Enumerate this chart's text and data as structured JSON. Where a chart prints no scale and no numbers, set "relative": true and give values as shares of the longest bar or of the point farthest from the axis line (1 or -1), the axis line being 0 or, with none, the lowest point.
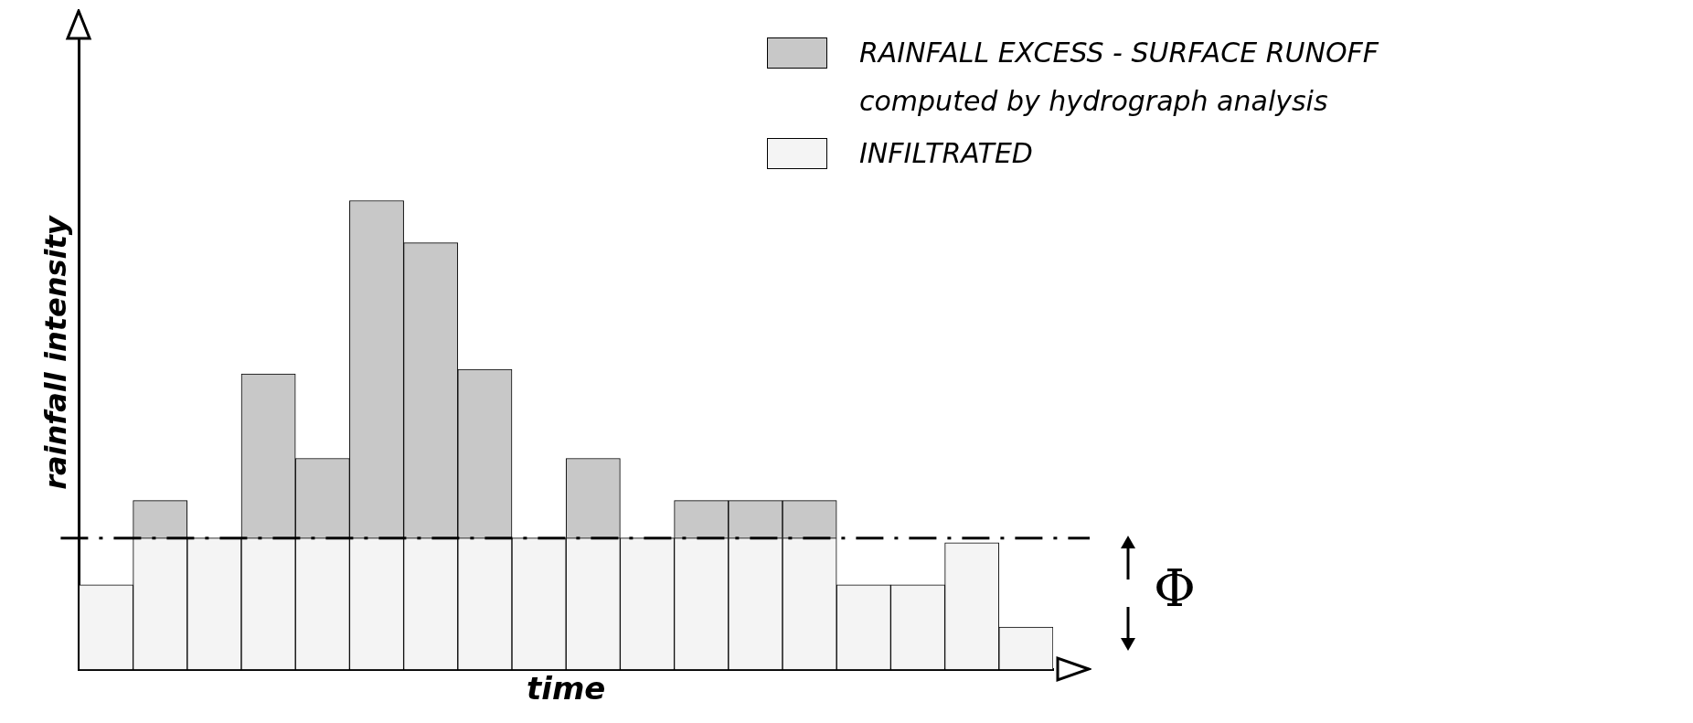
{
  "chart_data": {
    "type": "bar",
    "relative": true,
    "stacked": true,
    "xlabel": "time",
    "ylabel": "rainfall intensity",
    "legend": "top right",
    "grid": false,
    "categories": [
      null,
      null,
      null,
      null,
      null,
      null,
      null,
      null,
      null,
      null,
      null,
      null,
      null,
      null,
      null,
      null,
      null,
      null
    ],
    "series": [
      {
        "name": "INFILTRATED",
        "color": "#f4f4f4",
        "values": [
          0.18,
          0.28,
          0.28,
          0.28,
          0.28,
          0.28,
          0.28,
          0.28,
          0.28,
          0.28,
          0.28,
          0.28,
          0.28,
          0.28,
          0.18,
          0.18,
          0.27,
          0.09
        ]
      },
      {
        "name": "RAINFALL EXCESS - SURFACE RUNOFF",
        "color": "#c8c8c8",
        "values": [
          null,
          0.08,
          null,
          0.35,
          0.17,
          0.72,
          0.63,
          0.36,
          null,
          0.17,
          null,
          0.08,
          0.08,
          0.08,
          null,
          null,
          null,
          null
        ]
      }
    ],
    "ref_lines": [
      {
        "axis": "y",
        "value": 0.28,
        "label": "Φ",
        "line_style": "dashdot"
      }
    ],
    "annotations": [
      "computed by hydrograph analysis"
    ]
  }
}
